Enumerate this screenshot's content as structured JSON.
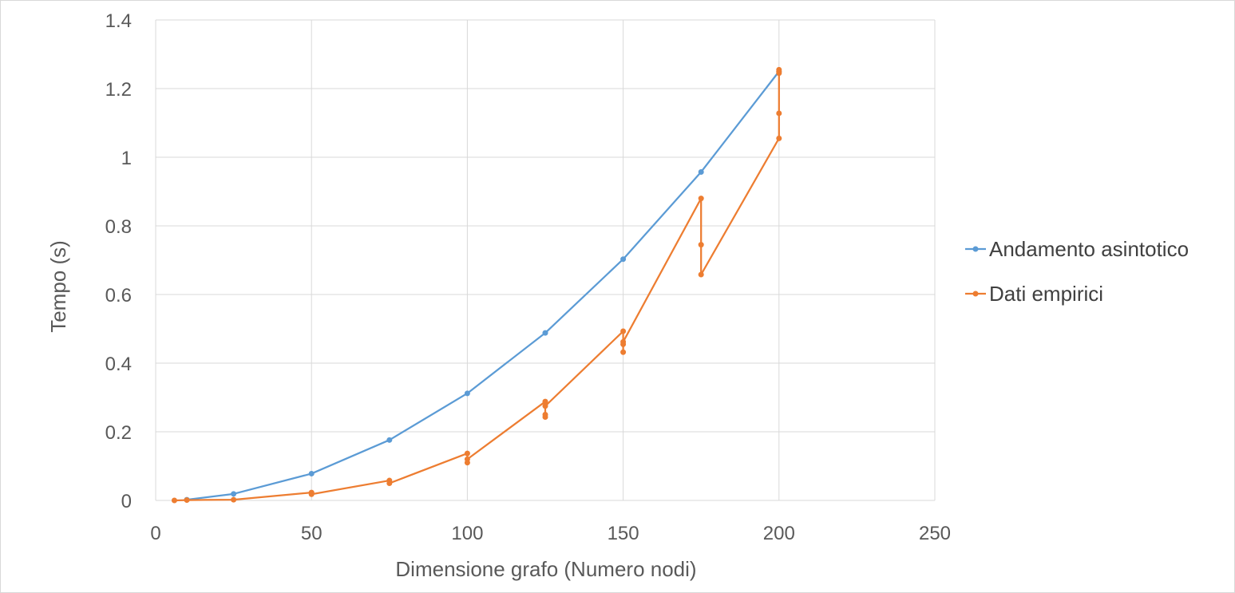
{
  "chart_data": {
    "type": "scatter",
    "title": "",
    "xlabel": "Dimensione grafo (Numero nodi)",
    "ylabel": "Tempo (s)",
    "xlim": [
      0,
      250
    ],
    "ylim": [
      0,
      1.4
    ],
    "x_ticks": [
      0,
      50,
      100,
      150,
      200,
      250
    ],
    "y_ticks": [
      0,
      0.2,
      0.4,
      0.6,
      0.8,
      1,
      1.2,
      1.4
    ],
    "x_tick_labels": [
      "0",
      "50",
      "100",
      "150",
      "200",
      "250"
    ],
    "y_tick_labels": [
      "0",
      "0.2",
      "0.4",
      "0.6",
      "0.8",
      "1",
      "1.2",
      "1.4"
    ],
    "grid": true,
    "legend_position": "right",
    "series": [
      {
        "name": "Andamento asintotico",
        "color": "#5B9BD5",
        "points": [
          [
            10,
            0.002
          ],
          [
            25,
            0.019
          ],
          [
            50,
            0.078
          ],
          [
            75,
            0.176
          ],
          [
            100,
            0.312
          ],
          [
            125,
            0.488
          ],
          [
            150,
            0.703
          ],
          [
            175,
            0.957
          ],
          [
            200,
            1.25
          ]
        ]
      },
      {
        "name": "Dati empirici",
        "color": "#ED7D31",
        "points": [
          [
            6,
            0.0
          ],
          [
            10,
            0.001
          ],
          [
            25,
            0.002
          ],
          [
            50,
            0.023
          ],
          [
            50,
            0.018
          ],
          [
            75,
            0.058
          ],
          [
            75,
            0.05
          ],
          [
            100,
            0.137
          ],
          [
            100,
            0.11
          ],
          [
            100,
            0.12
          ],
          [
            125,
            0.288
          ],
          [
            125,
            0.243
          ],
          [
            125,
            0.25
          ],
          [
            125,
            0.275
          ],
          [
            150,
            0.493
          ],
          [
            150,
            0.432
          ],
          [
            150,
            0.455
          ],
          [
            150,
            0.462
          ],
          [
            175,
            0.88
          ],
          [
            175,
            0.745
          ],
          [
            175,
            0.658
          ],
          [
            200,
            1.055
          ],
          [
            200,
            1.128
          ],
          [
            200,
            1.255
          ],
          [
            200,
            1.245
          ],
          [
            200,
            1.25
          ]
        ]
      }
    ]
  }
}
